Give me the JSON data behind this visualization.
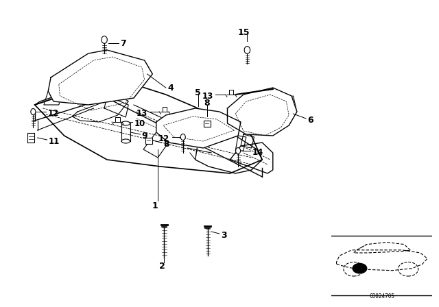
{
  "bg_color": "#ffffff",
  "line_color": "#000000",
  "fig_width": 6.4,
  "fig_height": 4.48,
  "dpi": 100,
  "watermark": "C0024705"
}
